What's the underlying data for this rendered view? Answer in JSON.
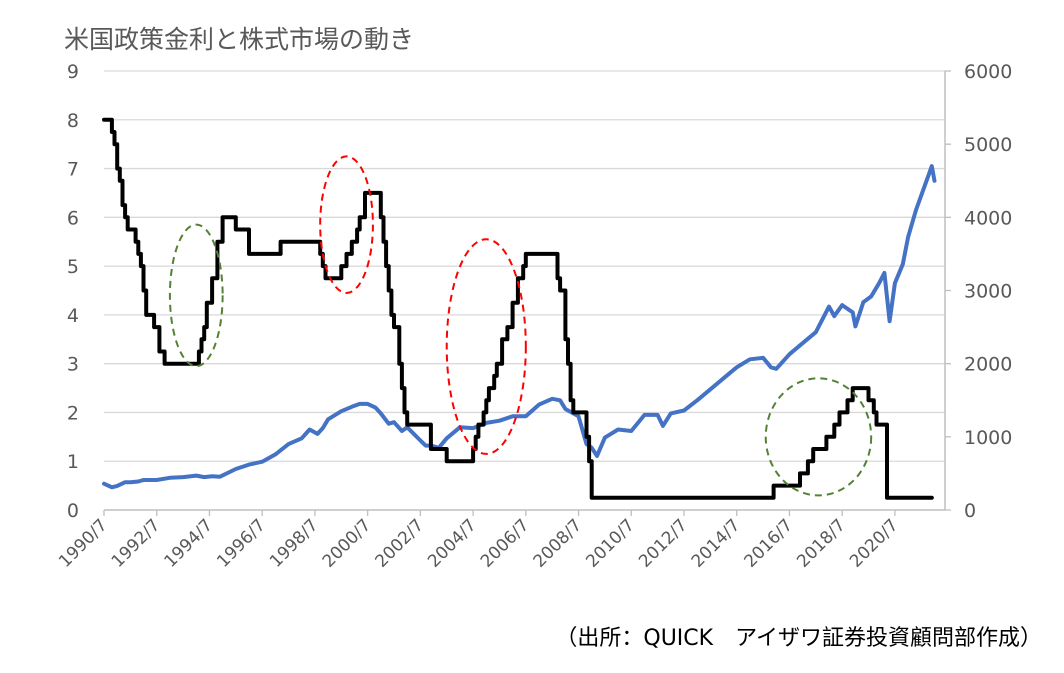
{
  "chart_data": {
    "type": "line",
    "title": "米国政策金利と株式市場の動き",
    "source": "（出所：QUICK　アイザワ証券投資顧問部作成）",
    "grid": true,
    "x_tick_labels": [
      "1990/7",
      "1992/7",
      "1994/7",
      "1996/7",
      "1998/7",
      "2000/7",
      "2002/7",
      "2004/7",
      "2006/7",
      "2008/7",
      "2010/7",
      "2012/7",
      "2014/7",
      "2016/7",
      "2018/7",
      "2020/7"
    ],
    "x_range": [
      1990.5,
      2022.4
    ],
    "y_left": {
      "range": [
        0,
        9
      ],
      "ticks": [
        "0",
        "1",
        "2",
        "3",
        "4",
        "5",
        "6",
        "7",
        "8",
        "9"
      ]
    },
    "y_right": {
      "range": [
        0,
        6000
      ],
      "ticks": [
        "0",
        "1000",
        "2000",
        "3000",
        "4000",
        "5000",
        "6000"
      ]
    },
    "series": [
      {
        "axis": "left",
        "color": "#000000",
        "step": true,
        "points": [
          [
            1990.5,
            8.0
          ],
          [
            1990.7,
            8.0
          ],
          [
            1990.8,
            7.75
          ],
          [
            1990.9,
            7.5
          ],
          [
            1991.0,
            7.0
          ],
          [
            1991.1,
            6.75
          ],
          [
            1991.2,
            6.25
          ],
          [
            1991.3,
            6.0
          ],
          [
            1991.4,
            5.75
          ],
          [
            1991.7,
            5.5
          ],
          [
            1991.8,
            5.25
          ],
          [
            1991.9,
            5.0
          ],
          [
            1992.0,
            4.5
          ],
          [
            1992.1,
            4.0
          ],
          [
            1992.4,
            3.75
          ],
          [
            1992.6,
            3.25
          ],
          [
            1992.8,
            3.0
          ],
          [
            1994.1,
            3.25
          ],
          [
            1994.2,
            3.5
          ],
          [
            1994.3,
            3.75
          ],
          [
            1994.4,
            4.25
          ],
          [
            1994.6,
            4.75
          ],
          [
            1994.8,
            5.5
          ],
          [
            1995.0,
            6.0
          ],
          [
            1995.5,
            5.75
          ],
          [
            1996.0,
            5.25
          ],
          [
            1997.2,
            5.5
          ],
          [
            1998.7,
            5.25
          ],
          [
            1998.8,
            5.0
          ],
          [
            1998.9,
            4.75
          ],
          [
            1999.5,
            5.0
          ],
          [
            1999.7,
            5.25
          ],
          [
            1999.9,
            5.5
          ],
          [
            2000.1,
            5.75
          ],
          [
            2000.2,
            6.0
          ],
          [
            2000.4,
            6.5
          ],
          [
            2001.0,
            6.0
          ],
          [
            2001.1,
            5.5
          ],
          [
            2001.2,
            5.0
          ],
          [
            2001.3,
            4.5
          ],
          [
            2001.4,
            4.0
          ],
          [
            2001.5,
            3.75
          ],
          [
            2001.7,
            3.0
          ],
          [
            2001.8,
            2.5
          ],
          [
            2001.9,
            2.0
          ],
          [
            2002.0,
            1.75
          ],
          [
            2002.9,
            1.25
          ],
          [
            2003.5,
            1.0
          ],
          [
            2004.5,
            1.25
          ],
          [
            2004.6,
            1.5
          ],
          [
            2004.7,
            1.75
          ],
          [
            2004.9,
            2.0
          ],
          [
            2005.0,
            2.25
          ],
          [
            2005.1,
            2.5
          ],
          [
            2005.3,
            2.75
          ],
          [
            2005.4,
            3.0
          ],
          [
            2005.6,
            3.5
          ],
          [
            2005.8,
            3.75
          ],
          [
            2006.0,
            4.25
          ],
          [
            2006.2,
            4.75
          ],
          [
            2006.4,
            5.0
          ],
          [
            2006.5,
            5.25
          ],
          [
            2007.7,
            4.75
          ],
          [
            2007.8,
            4.5
          ],
          [
            2008.0,
            3.5
          ],
          [
            2008.1,
            3.0
          ],
          [
            2008.2,
            2.25
          ],
          [
            2008.3,
            2.0
          ],
          [
            2008.8,
            1.5
          ],
          [
            2008.9,
            1.0
          ],
          [
            2009.0,
            0.25
          ],
          [
            2015.9,
            0.5
          ],
          [
            2016.9,
            0.75
          ],
          [
            2017.2,
            1.0
          ],
          [
            2017.4,
            1.25
          ],
          [
            2017.9,
            1.5
          ],
          [
            2018.2,
            1.75
          ],
          [
            2018.4,
            2.0
          ],
          [
            2018.7,
            2.25
          ],
          [
            2018.9,
            2.5
          ],
          [
            2019.5,
            2.25
          ],
          [
            2019.7,
            2.0
          ],
          [
            2019.8,
            1.75
          ],
          [
            2020.2,
            0.25
          ],
          [
            2021.9,
            0.25
          ]
        ]
      },
      {
        "axis": "right",
        "color": "#4472C4",
        "step": false,
        "points": [
          [
            1990.5,
            360
          ],
          [
            1990.8,
            310
          ],
          [
            1991.0,
            330
          ],
          [
            1991.3,
            380
          ],
          [
            1991.5,
            380
          ],
          [
            1991.8,
            390
          ],
          [
            1992.0,
            410
          ],
          [
            1992.5,
            410
          ],
          [
            1993.0,
            440
          ],
          [
            1993.5,
            450
          ],
          [
            1994.0,
            470
          ],
          [
            1994.3,
            450
          ],
          [
            1994.6,
            460
          ],
          [
            1994.9,
            455
          ],
          [
            1995.5,
            560
          ],
          [
            1996.0,
            620
          ],
          [
            1996.5,
            660
          ],
          [
            1997.0,
            760
          ],
          [
            1997.5,
            900
          ],
          [
            1998.0,
            980
          ],
          [
            1998.3,
            1100
          ],
          [
            1998.6,
            1040
          ],
          [
            1998.8,
            1120
          ],
          [
            1999.0,
            1240
          ],
          [
            1999.5,
            1350
          ],
          [
            1999.9,
            1410
          ],
          [
            2000.2,
            1450
          ],
          [
            2000.5,
            1450
          ],
          [
            2000.8,
            1400
          ],
          [
            2001.0,
            1320
          ],
          [
            2001.3,
            1180
          ],
          [
            2001.5,
            1200
          ],
          [
            2001.8,
            1080
          ],
          [
            2002.0,
            1130
          ],
          [
            2002.5,
            950
          ],
          [
            2002.7,
            880
          ],
          [
            2002.9,
            880
          ],
          [
            2003.2,
            850
          ],
          [
            2003.5,
            980
          ],
          [
            2004.0,
            1130
          ],
          [
            2004.5,
            1120
          ],
          [
            2005.0,
            1190
          ],
          [
            2005.5,
            1220
          ],
          [
            2006.0,
            1280
          ],
          [
            2006.5,
            1280
          ],
          [
            2007.0,
            1440
          ],
          [
            2007.5,
            1520
          ],
          [
            2007.8,
            1500
          ],
          [
            2008.0,
            1380
          ],
          [
            2008.5,
            1280
          ],
          [
            2008.8,
            900
          ],
          [
            2009.0,
            850
          ],
          [
            2009.2,
            740
          ],
          [
            2009.5,
            990
          ],
          [
            2010.0,
            1100
          ],
          [
            2010.5,
            1080
          ],
          [
            2011.0,
            1300
          ],
          [
            2011.5,
            1300
          ],
          [
            2011.7,
            1150
          ],
          [
            2012.0,
            1320
          ],
          [
            2012.5,
            1360
          ],
          [
            2013.0,
            1500
          ],
          [
            2013.5,
            1650
          ],
          [
            2014.0,
            1800
          ],
          [
            2014.5,
            1950
          ],
          [
            2015.0,
            2060
          ],
          [
            2015.5,
            2080
          ],
          [
            2015.8,
            1950
          ],
          [
            2016.0,
            1930
          ],
          [
            2016.5,
            2130
          ],
          [
            2017.0,
            2280
          ],
          [
            2017.5,
            2430
          ],
          [
            2018.0,
            2780
          ],
          [
            2018.2,
            2650
          ],
          [
            2018.5,
            2800
          ],
          [
            2018.9,
            2700
          ],
          [
            2019.0,
            2510
          ],
          [
            2019.3,
            2840
          ],
          [
            2019.6,
            2920
          ],
          [
            2019.9,
            3100
          ],
          [
            2020.1,
            3240
          ],
          [
            2020.3,
            2580
          ],
          [
            2020.5,
            3100
          ],
          [
            2020.8,
            3360
          ],
          [
            2021.0,
            3730
          ],
          [
            2021.3,
            4100
          ],
          [
            2021.6,
            4400
          ],
          [
            2021.8,
            4600
          ],
          [
            2021.9,
            4700
          ],
          [
            2022.0,
            4500
          ]
        ]
      }
    ],
    "annotations": [
      {
        "type": "ellipse",
        "color": "#548235",
        "cx": 1994.0,
        "cy_left": 4.4,
        "rx_years": 1.0,
        "ry_left": 1.45
      },
      {
        "type": "ellipse",
        "color": "#FF0000",
        "cx": 1999.7,
        "cy_left": 5.85,
        "rx_years": 1.0,
        "ry_left": 1.4
      },
      {
        "type": "ellipse",
        "color": "#FF0000",
        "cx": 2005.0,
        "cy_left": 3.35,
        "rx_years": 1.5,
        "ry_left": 2.2
      },
      {
        "type": "ellipse",
        "color": "#548235",
        "cx": 2017.6,
        "cy_left": 1.5,
        "rx_years": 2.0,
        "ry_left": 1.2
      }
    ]
  }
}
